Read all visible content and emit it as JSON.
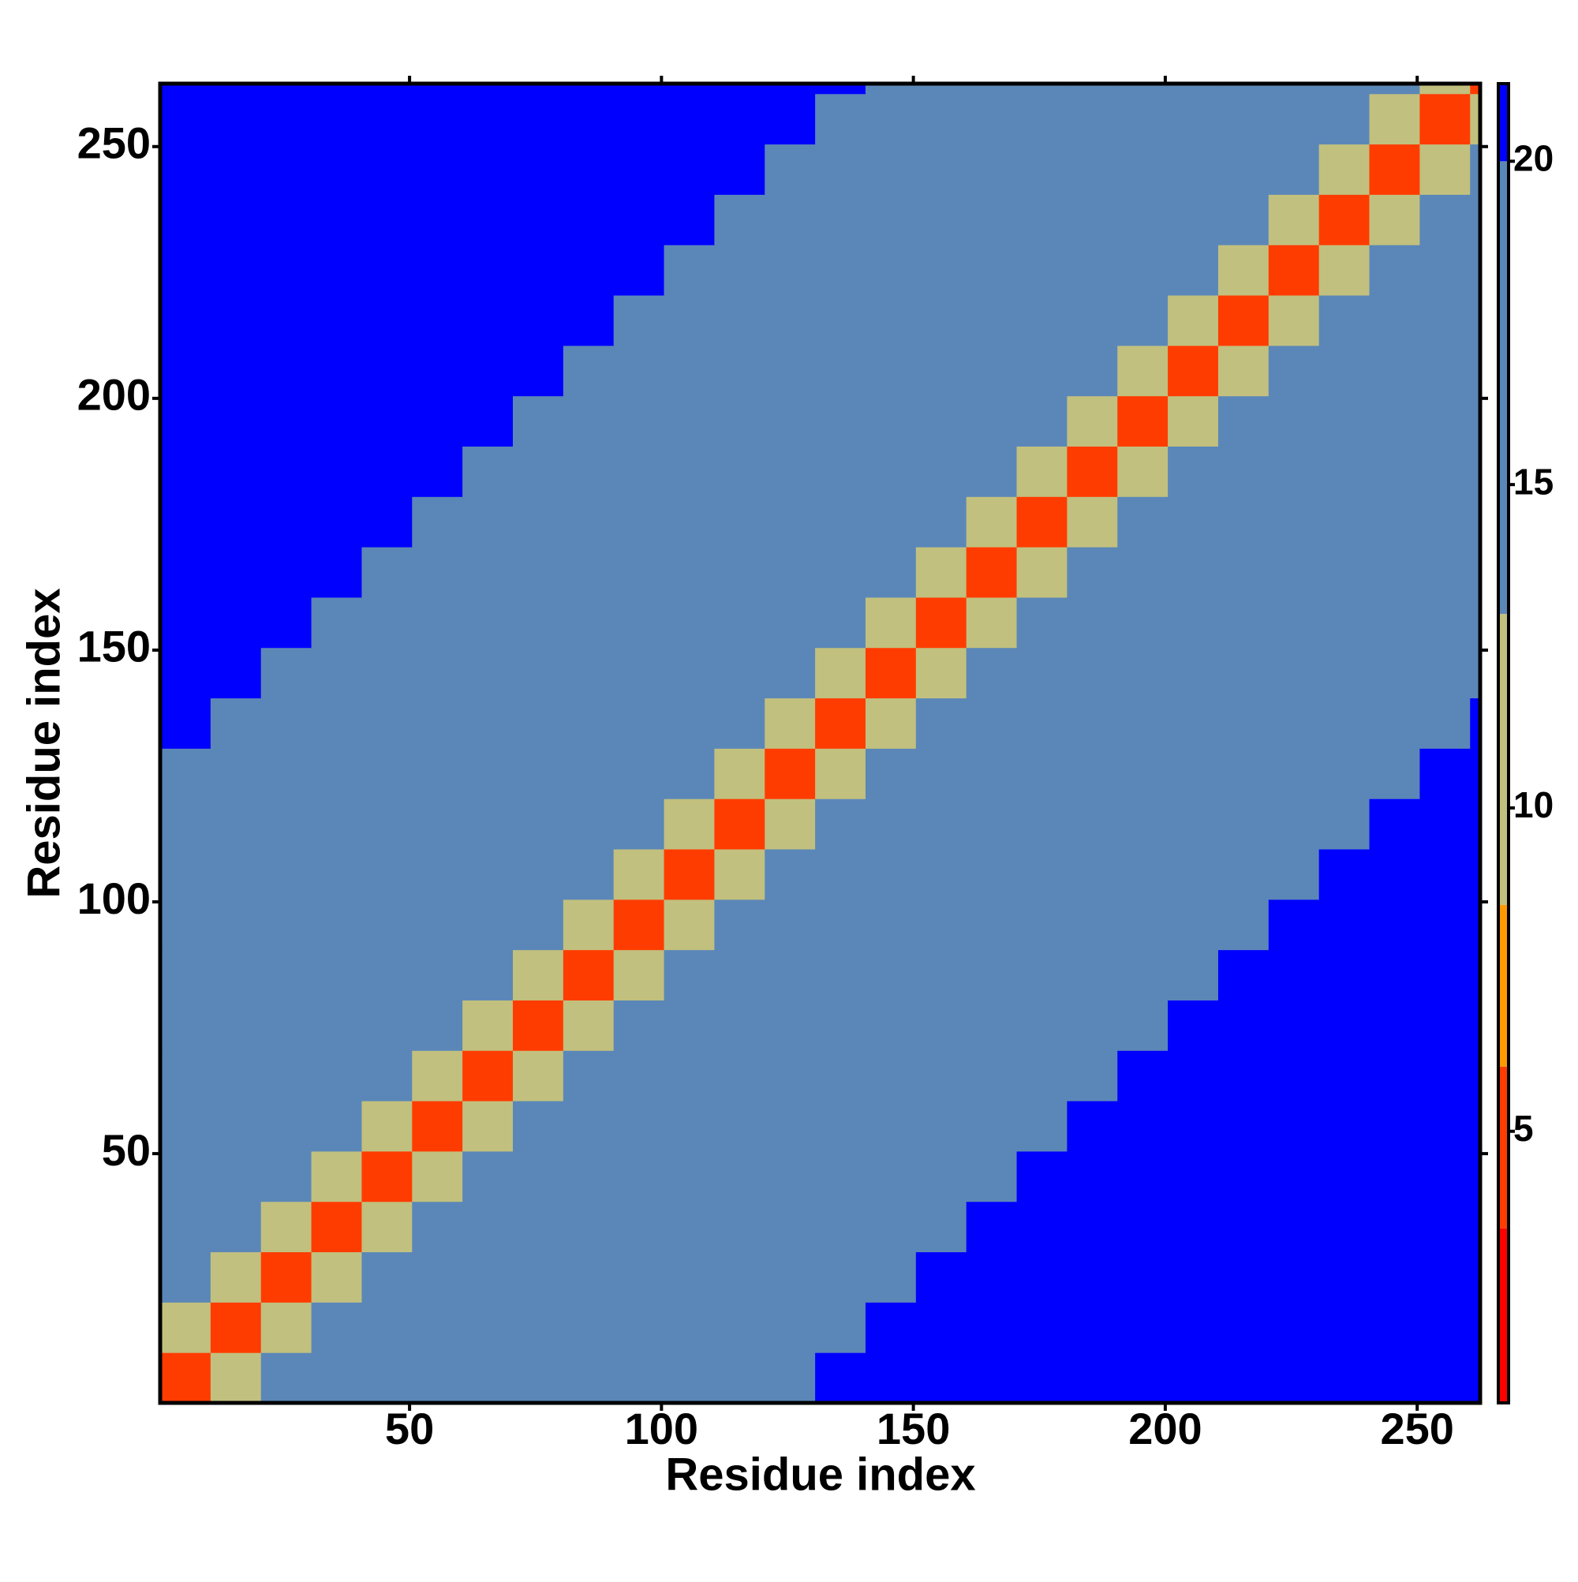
{
  "chart_data": {
    "type": "heatmap",
    "xlabel": "Residue index",
    "ylabel": "Residue index",
    "bins": [
      0.5,
      10.5,
      20.5,
      30.5,
      40.5,
      50.5,
      60.5,
      70.5,
      80.5,
      90.5,
      100.5,
      110.5,
      120.5,
      130.5,
      140.5,
      150.5,
      160.5,
      170.5,
      180.5,
      190.5,
      200.5,
      210.5,
      220.5,
      230.5,
      240.5,
      250.5,
      260.5,
      262.5
    ],
    "xlim": [
      0.5,
      262.5
    ],
    "ylim": [
      0.5,
      262.5
    ],
    "xticks": [
      50,
      100,
      150,
      200,
      250
    ],
    "yticks": [
      50,
      100,
      150,
      200,
      250
    ],
    "z": [
      [
        5,
        12,
        14,
        15,
        15,
        15,
        15,
        15,
        15,
        16,
        17,
        18,
        19,
        20,
        21,
        21,
        21,
        21,
        21,
        21,
        21,
        21,
        21,
        21,
        21,
        21,
        21
      ],
      [
        12,
        5,
        12,
        14,
        15,
        15,
        15,
        15,
        15,
        15,
        16,
        17,
        18,
        19,
        20,
        21,
        21,
        21,
        21,
        21,
        21,
        21,
        21,
        21,
        21,
        21,
        21
      ],
      [
        14,
        12,
        5,
        12,
        14,
        15,
        15,
        15,
        15,
        15,
        15,
        16,
        17,
        18,
        19,
        20,
        21,
        21,
        21,
        21,
        21,
        21,
        21,
        21,
        21,
        21,
        21
      ],
      [
        15,
        14,
        12,
        5,
        12,
        14,
        15,
        15,
        15,
        15,
        15,
        15,
        16,
        17,
        18,
        19,
        20,
        21,
        21,
        21,
        21,
        21,
        21,
        21,
        21,
        21,
        21
      ],
      [
        15,
        15,
        14,
        12,
        5,
        12,
        14,
        15,
        15,
        15,
        15,
        15,
        15,
        16,
        17,
        18,
        19,
        20,
        21,
        21,
        21,
        21,
        21,
        21,
        21,
        21,
        21
      ],
      [
        15,
        15,
        15,
        14,
        12,
        5,
        12,
        14,
        15,
        15,
        15,
        15,
        15,
        15,
        16,
        17,
        18,
        19,
        20,
        21,
        21,
        21,
        21,
        21,
        21,
        21,
        21
      ],
      [
        15,
        15,
        15,
        15,
        14,
        12,
        5,
        12,
        14,
        15,
        15,
        15,
        15,
        15,
        15,
        16,
        17,
        18,
        19,
        20,
        21,
        21,
        21,
        21,
        21,
        21,
        21
      ],
      [
        15,
        15,
        15,
        15,
        15,
        14,
        12,
        5,
        12,
        14,
        15,
        15,
        15,
        15,
        15,
        15,
        16,
        17,
        18,
        19,
        20,
        21,
        21,
        21,
        21,
        21,
        21
      ],
      [
        15,
        15,
        15,
        15,
        15,
        15,
        14,
        12,
        5,
        12,
        14,
        15,
        15,
        15,
        15,
        15,
        15,
        16,
        17,
        18,
        19,
        20,
        21,
        21,
        21,
        21,
        21
      ],
      [
        16,
        15,
        15,
        15,
        15,
        15,
        15,
        14,
        12,
        5,
        12,
        14,
        15,
        15,
        15,
        15,
        15,
        15,
        16,
        17,
        18,
        19,
        20,
        21,
        21,
        21,
        21
      ],
      [
        17,
        16,
        15,
        15,
        15,
        15,
        15,
        15,
        14,
        12,
        5,
        12,
        14,
        15,
        15,
        15,
        15,
        15,
        15,
        16,
        17,
        18,
        19,
        20,
        21,
        21,
        21
      ],
      [
        18,
        17,
        16,
        15,
        15,
        15,
        15,
        15,
        15,
        14,
        12,
        5,
        12,
        14,
        15,
        15,
        15,
        15,
        15,
        15,
        16,
        17,
        18,
        19,
        20,
        21,
        21
      ],
      [
        19,
        18,
        17,
        16,
        15,
        15,
        15,
        15,
        15,
        15,
        14,
        12,
        5,
        12,
        14,
        15,
        15,
        15,
        15,
        15,
        15,
        16,
        17,
        18,
        19,
        20,
        21
      ],
      [
        20,
        19,
        18,
        17,
        16,
        15,
        15,
        15,
        15,
        15,
        15,
        14,
        12,
        5,
        12,
        14,
        15,
        15,
        15,
        15,
        15,
        15,
        16,
        17,
        18,
        19,
        20
      ],
      [
        21,
        20,
        19,
        18,
        17,
        16,
        15,
        15,
        15,
        15,
        15,
        15,
        14,
        12,
        5,
        12,
        14,
        15,
        15,
        15,
        15,
        15,
        15,
        16,
        17,
        18,
        19
      ],
      [
        21,
        21,
        20,
        19,
        18,
        17,
        16,
        15,
        15,
        15,
        15,
        15,
        15,
        14,
        12,
        5,
        12,
        14,
        15,
        15,
        15,
        15,
        15,
        15,
        16,
        17,
        18
      ],
      [
        21,
        21,
        21,
        20,
        19,
        18,
        17,
        16,
        15,
        15,
        15,
        15,
        15,
        15,
        14,
        12,
        5,
        12,
        14,
        15,
        15,
        15,
        15,
        15,
        15,
        16,
        17
      ],
      [
        21,
        21,
        21,
        21,
        20,
        19,
        18,
        17,
        16,
        15,
        15,
        15,
        15,
        15,
        15,
        14,
        12,
        5,
        12,
        14,
        15,
        15,
        15,
        15,
        15,
        15,
        16
      ],
      [
        21,
        21,
        21,
        21,
        21,
        20,
        19,
        18,
        17,
        16,
        15,
        15,
        15,
        15,
        15,
        15,
        14,
        12,
        5,
        12,
        14,
        15,
        15,
        15,
        15,
        15,
        15
      ],
      [
        21,
        21,
        21,
        21,
        21,
        21,
        20,
        19,
        18,
        17,
        16,
        15,
        15,
        15,
        15,
        15,
        15,
        14,
        12,
        5,
        12,
        14,
        15,
        15,
        15,
        15,
        15
      ],
      [
        21,
        21,
        21,
        21,
        21,
        21,
        21,
        20,
        19,
        18,
        17,
        16,
        15,
        15,
        15,
        15,
        15,
        15,
        14,
        12,
        5,
        12,
        14,
        15,
        15,
        15,
        15
      ],
      [
        21,
        21,
        21,
        21,
        21,
        21,
        21,
        21,
        20,
        19,
        18,
        17,
        16,
        15,
        15,
        15,
        15,
        15,
        15,
        14,
        12,
        5,
        12,
        14,
        15,
        15,
        15
      ],
      [
        21,
        21,
        21,
        21,
        21,
        21,
        21,
        21,
        21,
        20,
        19,
        18,
        17,
        16,
        15,
        15,
        15,
        15,
        15,
        15,
        14,
        12,
        5,
        12,
        14,
        15,
        15
      ],
      [
        21,
        21,
        21,
        21,
        21,
        21,
        21,
        21,
        21,
        21,
        20,
        19,
        18,
        17,
        16,
        15,
        15,
        15,
        15,
        15,
        15,
        14,
        12,
        5,
        12,
        14,
        15
      ],
      [
        21,
        21,
        21,
        21,
        21,
        21,
        21,
        21,
        21,
        21,
        21,
        20,
        19,
        18,
        17,
        16,
        15,
        15,
        15,
        15,
        15,
        15,
        14,
        12,
        5,
        12,
        14
      ],
      [
        21,
        21,
        21,
        21,
        21,
        21,
        21,
        21,
        21,
        21,
        21,
        21,
        20,
        19,
        18,
        17,
        16,
        15,
        15,
        15,
        15,
        15,
        15,
        14,
        12,
        5,
        12
      ],
      [
        21,
        21,
        21,
        21,
        21,
        21,
        21,
        21,
        21,
        21,
        21,
        21,
        21,
        20,
        19,
        18,
        17,
        16,
        15,
        15,
        15,
        15,
        15,
        15,
        14,
        12,
        5
      ]
    ],
    "colorscale": [
      {
        "value": 0.8,
        "color": "#ff0000"
      },
      {
        "value": 3.5,
        "color": "#ff3c00"
      },
      {
        "value": 6,
        "color": "#ff9900"
      },
      {
        "value": 8.5,
        "color": "#c2c07e"
      },
      {
        "value": 13,
        "color": "#5b87b8"
      },
      {
        "value": 20,
        "color": "#0000ff"
      }
    ],
    "clim": [
      0.8,
      21.2
    ],
    "cticks": [
      5,
      10,
      15,
      20
    ]
  }
}
